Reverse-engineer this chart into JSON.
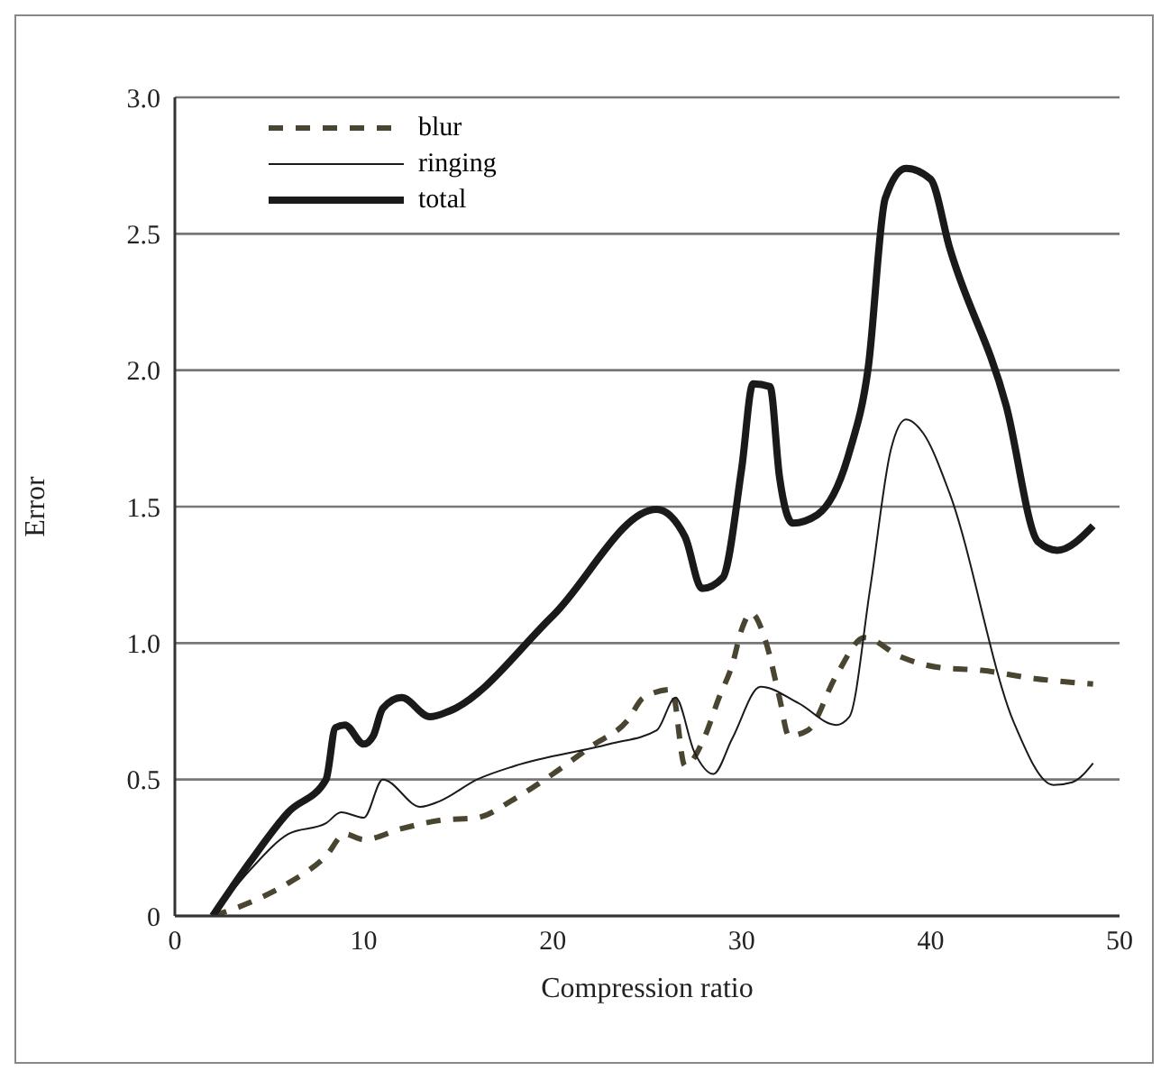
{
  "chart_data": {
    "type": "line",
    "xlabel": "Compression ratio",
    "ylabel": "Error",
    "xlim": [
      0,
      50
    ],
    "xticks": [
      0,
      10,
      20,
      30,
      40,
      50
    ],
    "ylim": [
      0,
      3
    ],
    "yticks": [
      0,
      0.5,
      {
        "value": 1,
        "label": "1.0"
      },
      1.5,
      {
        "value": 2,
        "label": "2.0"
      },
      2.5,
      {
        "value": 3,
        "label": "3.0"
      }
    ],
    "grid": "y",
    "legend": "top left",
    "marker": "none",
    "series": [
      {
        "name": "blur",
        "color": "#4a4530",
        "line_style": "dashed",
        "x": [
          2,
          4,
          6,
          8,
          9,
          10,
          12,
          14,
          16,
          18,
          20,
          22,
          24,
          24.8,
          26.3,
          27,
          28,
          28.8,
          29.5,
          30,
          30.5,
          31.3,
          32,
          32.5,
          33.5,
          35,
          36.5,
          38.4,
          40.5,
          42.7,
          45.5,
          48.6
        ],
        "values": [
          0,
          0.05,
          0.12,
          0.22,
          0.3,
          0.28,
          0.32,
          0.35,
          0.36,
          0.43,
          0.52,
          0.62,
          0.72,
          0.8,
          0.83,
          0.55,
          0.65,
          0.8,
          0.92,
          1.05,
          1.11,
          1.0,
          0.8,
          0.66,
          0.68,
          0.88,
          1.02,
          0.95,
          0.91,
          0.9,
          0.87,
          0.85
        ]
      },
      {
        "name": "ringing",
        "color": "#1a1a1a",
        "line_style": "solid",
        "x": [
          2,
          4,
          6,
          8,
          8.8,
          10,
          11,
          13,
          14,
          16,
          18,
          23,
          25.5,
          26.5,
          27.5,
          28.5,
          29.5,
          31,
          33,
          35,
          35.7,
          36.8,
          37.9,
          38.7,
          39.6,
          41,
          44.4,
          46.5,
          47.5,
          48.6
        ],
        "values": [
          0,
          0.17,
          0.3,
          0.34,
          0.38,
          0.36,
          0.5,
          0.4,
          0.42,
          0.5,
          0.55,
          0.63,
          0.68,
          0.8,
          0.6,
          0.52,
          0.65,
          0.84,
          0.78,
          0.7,
          0.73,
          1.2,
          1.71,
          1.82,
          1.77,
          1.55,
          0.71,
          0.48,
          0.49,
          0.56
        ]
      },
      {
        "name": "total",
        "color": "#1a1a1a",
        "line_style": "solid",
        "x": [
          2,
          4,
          6,
          8,
          8.5,
          9,
          10,
          10.5,
          11,
          12,
          13.5,
          14.5,
          20,
          25.5,
          27,
          27.9,
          29,
          30,
          30.6,
          31.5,
          32,
          32.7,
          34,
          35.7,
          36.7,
          37.6,
          38.7,
          40,
          41,
          44,
          45.7,
          46.7,
          48.6
        ],
        "values": [
          0,
          0.2,
          0.38,
          0.5,
          0.69,
          0.7,
          0.63,
          0.66,
          0.76,
          0.8,
          0.73,
          0.75,
          1.1,
          1.49,
          1.39,
          1.2,
          1.24,
          1.64,
          1.95,
          1.94,
          1.61,
          1.44,
          1.47,
          1.7,
          2.01,
          2.63,
          2.74,
          2.7,
          2.45,
          1.87,
          1.37,
          1.34,
          1.43
        ]
      }
    ]
  }
}
